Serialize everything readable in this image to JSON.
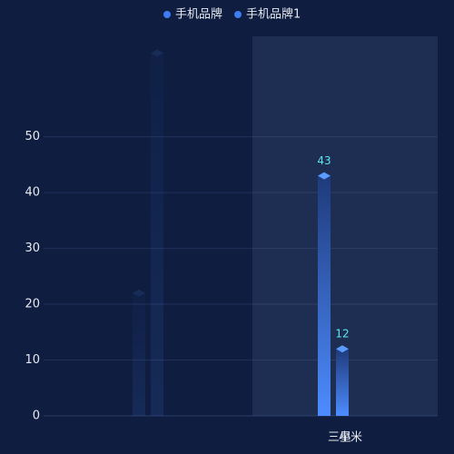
{
  "chart_data": {
    "type": "bar",
    "categories": [
      null,
      "三星"
    ],
    "overlay_labels": [
      null,
      "小米"
    ],
    "series": [
      {
        "name": "手机品牌",
        "color": "#3d7df0",
        "values": [
          22,
          43
        ]
      },
      {
        "name": "手机品牌1",
        "color": "#3d7df0",
        "values": [
          65,
          12
        ]
      }
    ],
    "faded_categories": [
      0
    ],
    "highlight_category": 1,
    "label_color": "#5ce6f0",
    "ylim": [
      0,
      68
    ],
    "yticks": [
      0,
      10,
      20,
      30,
      40,
      50
    ],
    "grid": true,
    "legend": "top"
  }
}
